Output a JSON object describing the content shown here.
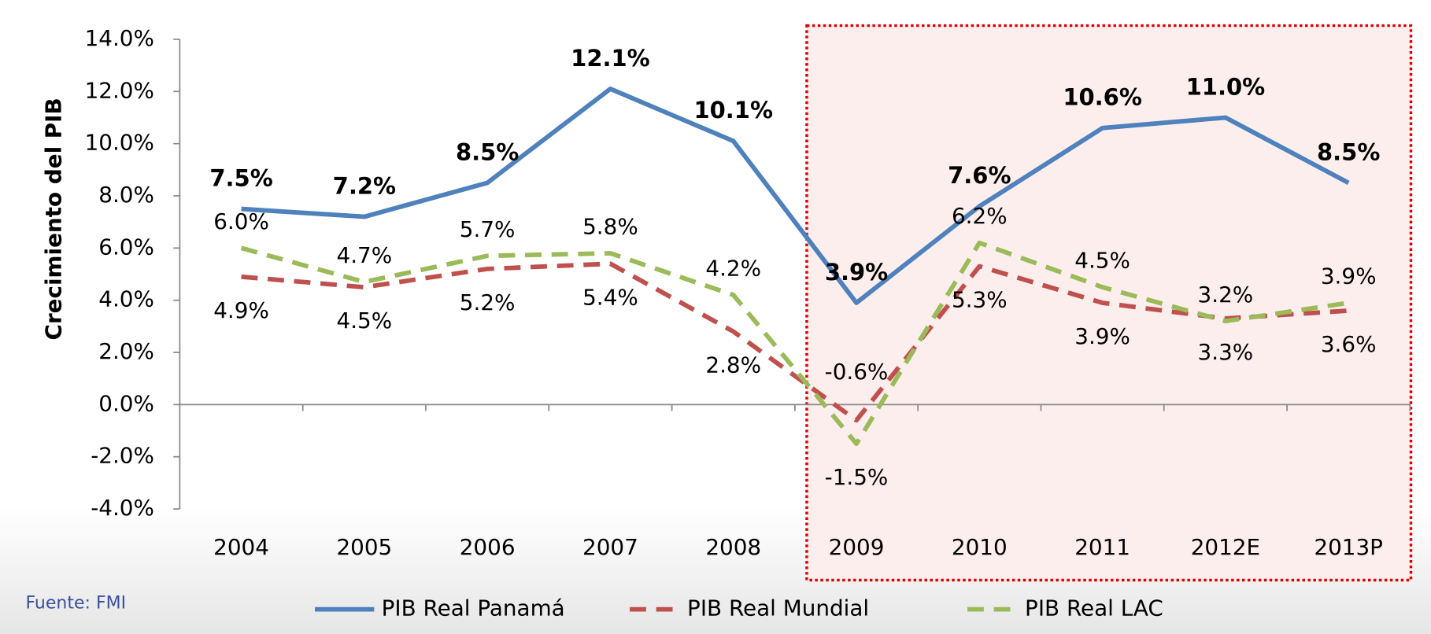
{
  "chart_data": {
    "type": "line",
    "y_label": "Crecimiento del PIB",
    "source": "Fuente: FMI",
    "categories": [
      "2004",
      "2005",
      "2006",
      "2007",
      "2008",
      "2009",
      "2010",
      "2011",
      "2012E",
      "2013P"
    ],
    "series": [
      {
        "name": "PIB Real Panamá",
        "color": "#4f81bd",
        "dash": "solid",
        "values": [
          7.5,
          7.2,
          8.5,
          12.1,
          10.1,
          3.9,
          7.6,
          10.6,
          11.0,
          8.5
        ],
        "value_labels": [
          "7.5%",
          "7.2%",
          "8.5%",
          "12.1%",
          "10.1%",
          "3.9%",
          "7.6%",
          "10.6%",
          "11.0%",
          "8.5%"
        ]
      },
      {
        "name": "PIB Real Mundial",
        "color": "#c0504d",
        "dash": "dashed",
        "values": [
          4.9,
          4.5,
          5.2,
          5.4,
          2.8,
          -0.6,
          5.3,
          3.9,
          3.3,
          3.6
        ],
        "value_labels": [
          "4.9%",
          "4.5%",
          "5.2%",
          "5.4%",
          "2.8%",
          "-0.6%",
          "5.3%",
          "3.9%",
          "3.3%",
          "3.6%"
        ]
      },
      {
        "name": "PIB Real LAC",
        "color": "#9bbb59",
        "dash": "dashed",
        "values": [
          6.0,
          4.7,
          5.7,
          5.8,
          4.2,
          -1.5,
          6.2,
          4.5,
          3.2,
          3.9
        ],
        "value_labels": [
          "6.0%",
          "4.7%",
          "5.7%",
          "5.8%",
          "4.2%",
          "-1.5%",
          "6.2%",
          "4.5%",
          "3.2%",
          "3.9%"
        ]
      }
    ],
    "ylim": [
      -4,
      14
    ],
    "yticks": [
      {
        "value": -4,
        "label": "-4.0%"
      },
      {
        "value": -2,
        "label": "-2.0%"
      },
      {
        "value": 0,
        "label": "0.0%"
      },
      {
        "value": 2,
        "label": "2.0%"
      },
      {
        "value": 4,
        "label": "4.0%"
      },
      {
        "value": 6,
        "label": "6.0%"
      },
      {
        "value": 8,
        "label": "8.0%"
      },
      {
        "value": 10,
        "label": "10.0%"
      },
      {
        "value": 12,
        "label": "12.0%"
      },
      {
        "value": 14,
        "label": "14.0%"
      }
    ],
    "legend": "bottom"
  }
}
